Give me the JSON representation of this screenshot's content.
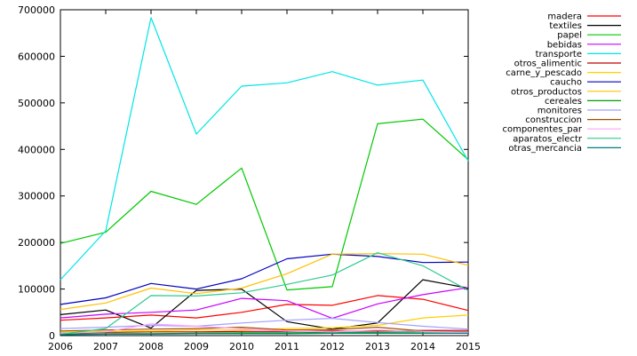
{
  "chart_data": {
    "type": "line",
    "title": "",
    "xlabel": "",
    "ylabel": "",
    "x": [
      "2006",
      "2007",
      "2008",
      "2009",
      "2010",
      "2011",
      "2012",
      "2013",
      "2014",
      "2015"
    ],
    "ylim": [
      0,
      700000
    ],
    "yticks": [
      0,
      100000,
      200000,
      300000,
      400000,
      500000,
      600000,
      700000
    ],
    "ytick_labels": [
      "0",
      "100000",
      "200000",
      "300000",
      "400000",
      "500000",
      "600000",
      "700000"
    ],
    "grid": false,
    "legend_position": "right",
    "series": [
      {
        "name": "madera",
        "color": "#ff0000",
        "values": [
          33000,
          38000,
          44000,
          38000,
          50000,
          67000,
          65000,
          86000,
          78000,
          54000
        ]
      },
      {
        "name": "textiles",
        "color": "#000000",
        "values": [
          45000,
          55000,
          16000,
          97000,
          100000,
          30000,
          14000,
          27000,
          120000,
          102000
        ]
      },
      {
        "name": "papel",
        "color": "#00c800",
        "values": [
          198000,
          222000,
          310000,
          282000,
          360000,
          98000,
          105000,
          455000,
          465000,
          378000
        ]
      },
      {
        "name": "bebidas",
        "color": "#c800ff",
        "values": [
          38000,
          46000,
          50000,
          55000,
          80000,
          75000,
          37000,
          68000,
          88000,
          103000
        ]
      },
      {
        "name": "transporte",
        "color": "#00e5e5",
        "values": [
          120000,
          225000,
          683000,
          433000,
          536000,
          543000,
          567000,
          538000,
          549000,
          375000
        ]
      },
      {
        "name": "otros_alimentic",
        "color": "#c00000",
        "values": [
          5000,
          7000,
          8000,
          8000,
          9000,
          9000,
          10000,
          10000,
          11000,
          11000
        ]
      },
      {
        "name": "carne_y_pescado",
        "color": "#ffd000",
        "values": [
          8000,
          9000,
          10000,
          12000,
          12000,
          15000,
          17000,
          22000,
          38000,
          44000
        ]
      },
      {
        "name": "caucho",
        "color": "#0000c0",
        "values": [
          67000,
          81000,
          112000,
          100000,
          122000,
          165000,
          175000,
          170000,
          157000,
          158000
        ]
      },
      {
        "name": "otros_productos",
        "color": "#ffc000",
        "values": [
          56000,
          70000,
          102000,
          90000,
          102000,
          133000,
          175000,
          176000,
          175000,
          151000
        ]
      },
      {
        "name": "cereales",
        "color": "#00a000",
        "values": [
          3000,
          4000,
          4000,
          5000,
          6000,
          6000,
          7000,
          7000,
          8000,
          8000
        ]
      },
      {
        "name": "monitores",
        "color": "#a0a0ff",
        "values": [
          15000,
          18000,
          22000,
          20000,
          27000,
          33000,
          37000,
          28000,
          20000,
          14000
        ]
      },
      {
        "name": "construccion",
        "color": "#a05000",
        "values": [
          10000,
          12000,
          14000,
          15000,
          18000,
          12000,
          13000,
          18000,
          10000,
          8000
        ]
      },
      {
        "name": "componentes_par",
        "color": "#ffa0ff",
        "values": [
          5000,
          8000,
          25000,
          20000,
          15000,
          10000,
          8000,
          12000,
          9000,
          7000
        ]
      },
      {
        "name": "aparatos_electr",
        "color": "#30c890",
        "values": [
          3000,
          15000,
          86000,
          85000,
          92000,
          110000,
          130000,
          178000,
          150000,
          97000
        ]
      },
      {
        "name": "otras_mercancia",
        "color": "#008080",
        "values": [
          2000,
          3000,
          3000,
          4000,
          4000,
          4000,
          5000,
          5000,
          5000,
          5000
        ]
      }
    ]
  }
}
